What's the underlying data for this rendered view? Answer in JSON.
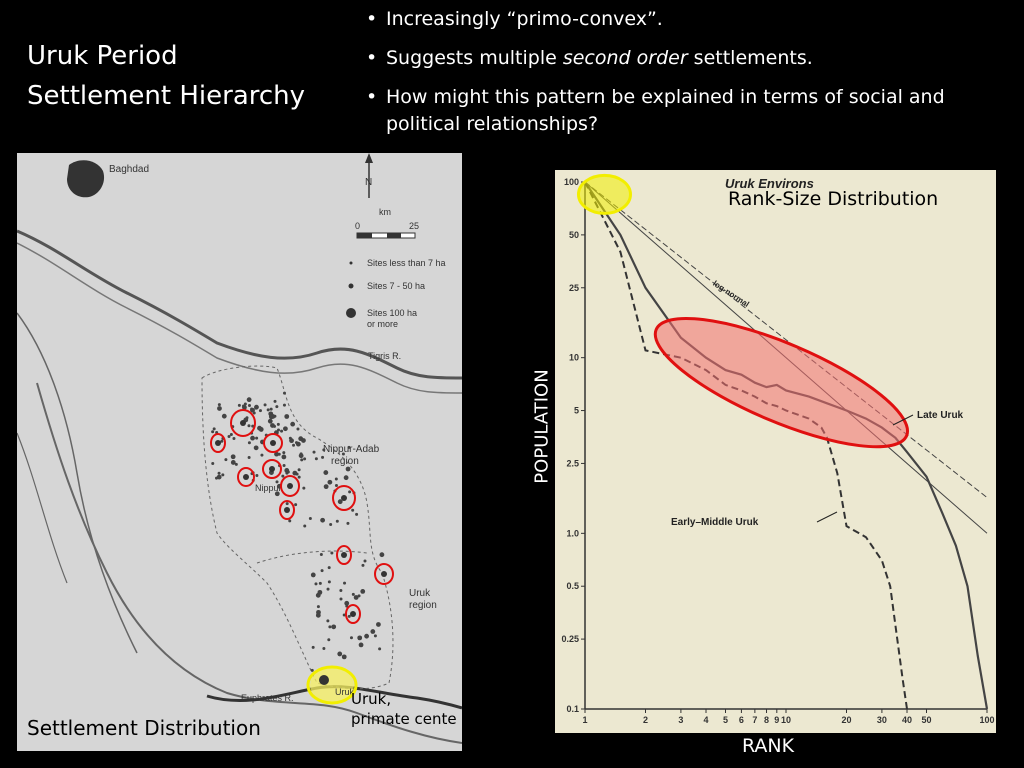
{
  "slide": {
    "title_line1": "Uruk Period",
    "title_line2": "Settlement Hierarchy",
    "bullets": [
      {
        "text_before": "Increasingly “primo-convex”."
      },
      {
        "text_before": "Suggests multiple ",
        "emphasis": "second order",
        "text_after": " settlements."
      },
      {
        "text_before": "How might this pattern be explained in terms of social and political relationships?"
      }
    ]
  },
  "map": {
    "caption": "Settlement Distribution",
    "callout_line1": "Uruk,",
    "callout_line2": "primate cente",
    "labels": {
      "baghdad": "Baghdad",
      "north": "N",
      "scale_unit": "km",
      "scale_min": "0",
      "scale_max": "25",
      "tigris": "Tigris R.",
      "nippur_line1": "Nippur-Adab",
      "nippur_line2": "region",
      "uruk_region_line1": "Uruk",
      "uruk_region_line2": "region",
      "euphrates": "Euphrates R.",
      "uruk_site": "Uruk",
      "nippur_site": "Nippur"
    },
    "legend": [
      {
        "label": "Sites less than 7 ha"
      },
      {
        "label": "Sites 7 - 50 ha"
      },
      {
        "label_line1": "Sites  100 ha",
        "label_line2": "or more"
      }
    ],
    "highlight_colors": {
      "second_order": "#e01010",
      "primate": "#f2ee00"
    }
  },
  "chart_data": {
    "type": "line",
    "title": "Uruk Environs",
    "overlay_label": "Rank-Size Distribution",
    "xlabel": "RANK",
    "ylabel": "POPULATION",
    "x_scale": "log",
    "y_scale": "log",
    "xlim": [
      1,
      100
    ],
    "ylim": [
      0.1,
      100
    ],
    "x_ticks": [
      1,
      2,
      3,
      4,
      5,
      6,
      7,
      8,
      9,
      10,
      20,
      30,
      40,
      50,
      100
    ],
    "x_tick_labels": [
      "1",
      "2",
      "3",
      "4",
      "5",
      "6",
      "7",
      "8",
      "9",
      "10",
      "20",
      "30",
      "40",
      "50",
      "100"
    ],
    "y_ticks": [
      100,
      50,
      25,
      10,
      5,
      2.5,
      1.0,
      0.5,
      0.25,
      0.1
    ],
    "y_tick_labels": [
      "100",
      "50",
      "25",
      "10",
      "5",
      "2.5",
      "1.0",
      "0.5",
      "0.25",
      "0.1"
    ],
    "series": [
      {
        "name": "Late Uruk",
        "style": "solid",
        "x": [
          1,
          1.5,
          2,
          3,
          4,
          5,
          6,
          7,
          8,
          9,
          10,
          13,
          16,
          20,
          25,
          30,
          35,
          40,
          50,
          60,
          70,
          80,
          90,
          100
        ],
        "y": [
          100,
          50,
          25,
          13,
          10,
          8.5,
          8,
          7.2,
          6.8,
          7,
          6.5,
          6,
          5.5,
          5,
          4.5,
          4,
          3.5,
          2.9,
          2.1,
          1.3,
          0.85,
          0.5,
          0.2,
          0.1
        ]
      },
      {
        "name": "Early-Middle Uruk",
        "style": "dashed",
        "x": [
          1,
          1.5,
          2,
          3,
          4,
          5,
          6,
          7,
          8,
          9,
          10,
          13,
          15,
          16,
          18,
          20,
          25,
          30,
          33,
          35,
          38,
          40
        ],
        "y": [
          100,
          40,
          11,
          10,
          8.5,
          7,
          6.5,
          6,
          5.5,
          5.3,
          5,
          4.5,
          4,
          3.5,
          2.2,
          1.1,
          0.95,
          0.7,
          0.5,
          0.3,
          0.15,
          0.1
        ]
      },
      {
        "name": "log-normal",
        "style": "dashed-thin",
        "x": [
          1,
          100
        ],
        "y": [
          100,
          1.6
        ]
      },
      {
        "name": "",
        "style": "thin",
        "x": [
          1,
          100
        ],
        "y": [
          100,
          1.0
        ]
      }
    ],
    "annotations": [
      "Late Uruk",
      "Early–Middle Uruk",
      "log-normal"
    ],
    "highlight_colors": {
      "primate": "#f2ee00",
      "second_order": "#e01010",
      "second_order_fill": "#f47070"
    }
  }
}
